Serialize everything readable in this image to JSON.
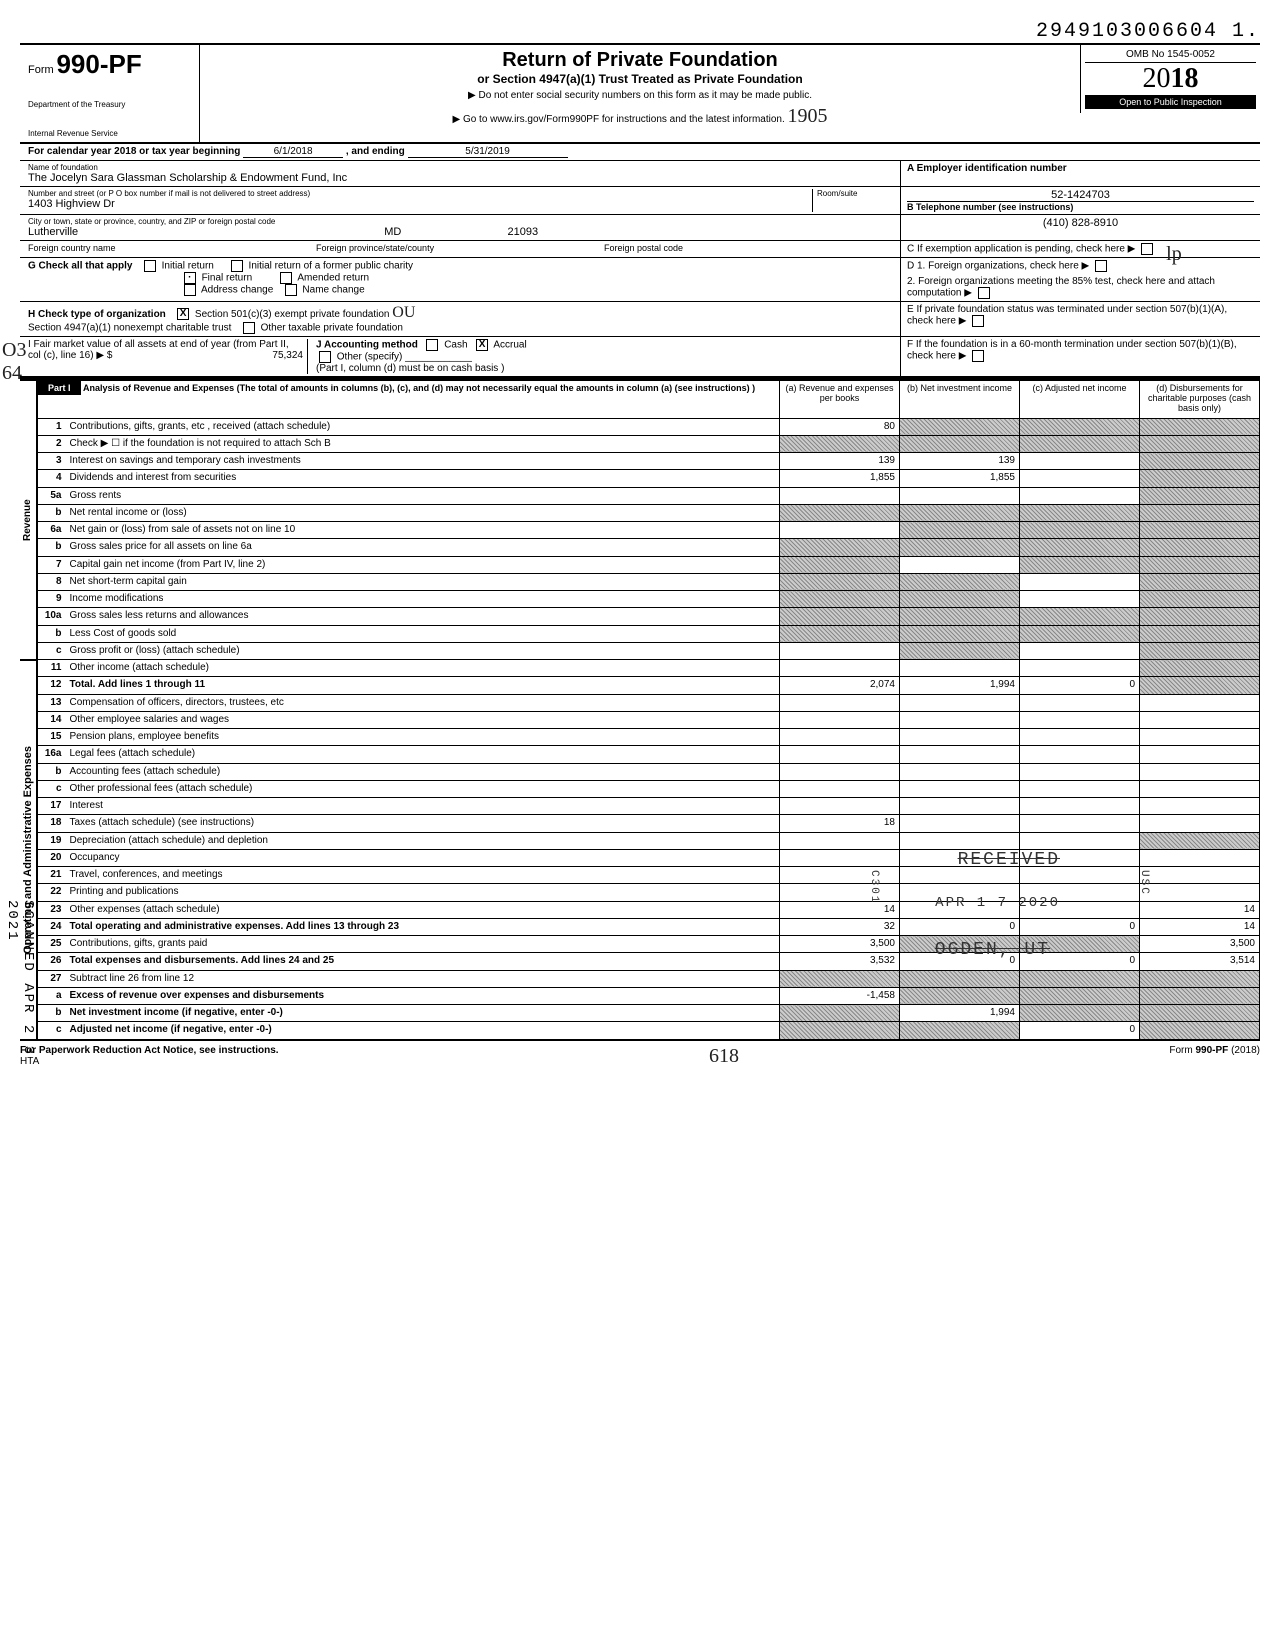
{
  "top_right_code": "2949103006604  1.",
  "form": {
    "number_prefix": "Form",
    "number": "990-PF",
    "dept1": "Department of the Treasury",
    "dept2": "Internal Revenue Service",
    "title": "Return of Private Foundation",
    "subtitle": "or Section 4947(a)(1) Trust Treated as Private Foundation",
    "note1": "▶  Do not enter social security numbers on this form as it may be made public.",
    "note2": "▶    Go to www.irs.gov/Form990PF for instructions and the latest information.",
    "hand_note": "1905",
    "omb": "OMB No 1545-0052",
    "year_prefix": "20",
    "year_suffix": "18",
    "inspection": "Open to Public Inspection"
  },
  "calendar": {
    "label": "For calendar year 2018 or tax year beginning",
    "begin": "6/1/2018",
    "mid": ", and ending",
    "end": "5/31/2019"
  },
  "foundation": {
    "name_label": "Name of foundation",
    "name": "The Jocelyn Sara Glassman Scholarship & Endowment Fund, Inc",
    "street_label": "Number and street (or P O  box number if mail is not delivered to street address)",
    "room_label": "Room/suite",
    "street": "1403 Highview Dr",
    "city_label": "City or town, state or province, country, and ZIP or foreign postal code",
    "city": "Lutherville",
    "state": "MD",
    "zip": "21093",
    "foreign_country_label": "Foreign country name",
    "foreign_province_label": "Foreign province/state/county",
    "foreign_postal_label": "Foreign postal code",
    "ein_label": "A  Employer identification number",
    "ein": "52-1424703",
    "phone_label": "B  Telephone number (see instructions)",
    "phone": "(410) 828-8910",
    "c_label": "C   If exemption application is pending, check here",
    "d1_label": "D  1. Foreign organizations, check here",
    "d2_label": "2. Foreign organizations meeting the 85% test, check here and attach computation",
    "e_label": "E   If private foundation status was terminated under section 507(b)(1)(A), check here",
    "f_label": "F   If the foundation is in a 60-month termination under section 507(b)(1)(B), check here"
  },
  "g": {
    "label": "G   Check all that apply",
    "initial": "Initial return",
    "initial_former": "Initial return of a former public charity",
    "final": "Final return",
    "amended": "Amended return",
    "address": "Address change",
    "name_change": "Name change"
  },
  "h": {
    "label": "H   Check type of organization",
    "opt1": "Section 501(c)(3) exempt private foundation",
    "opt2": "Section 4947(a)(1) nonexempt charitable trust",
    "opt3": "Other taxable private foundation"
  },
  "i": {
    "label": "I     Fair market value of all assets at end of year (from Part II, col  (c), line 16)  ▶  $",
    "value": "75,324"
  },
  "j": {
    "label": "J    Accounting method",
    "cash": "Cash",
    "accrual": "Accrual",
    "other": "Other (specify)",
    "note": "(Part I, column (d) must be on cash basis )"
  },
  "part1": {
    "tab": "Part I",
    "title": "Analysis of Revenue and Expenses (The total of amounts in columns (b), (c), and (d) may not necessarily equal the amounts in column (a) (see instructions) )",
    "col_a": "(a) Revenue and expenses per books",
    "col_b": "(b) Net investment income",
    "col_c": "(c) Adjusted net income",
    "col_d": "(d) Disbursements for charitable purposes (cash basis only)"
  },
  "revenue_label": "Revenue",
  "expenses_label": "Operating and Administrative Expenses",
  "lines": {
    "1": {
      "no": "1",
      "desc": "Contributions, gifts, grants, etc , received (attach schedule)",
      "a": "80",
      "b": "",
      "c": "",
      "d": "",
      "shaded": [
        "b",
        "c",
        "d"
      ]
    },
    "2": {
      "no": "2",
      "desc": "Check ▶ ☐ if the foundation is not required to attach Sch B",
      "a": "",
      "b": "",
      "c": "",
      "d": "",
      "shaded": [
        "a",
        "b",
        "c",
        "d"
      ]
    },
    "3": {
      "no": "3",
      "desc": "Interest on savings and temporary cash investments",
      "a": "139",
      "b": "139",
      "c": "",
      "d": "",
      "shaded": [
        "d"
      ]
    },
    "4": {
      "no": "4",
      "desc": "Dividends and interest from securities",
      "a": "1,855",
      "b": "1,855",
      "c": "",
      "d": "",
      "shaded": [
        "d"
      ]
    },
    "5a": {
      "no": "5a",
      "desc": "Gross rents",
      "a": "",
      "b": "",
      "c": "",
      "d": "",
      "shaded": [
        "d"
      ]
    },
    "5b": {
      "no": "b",
      "desc": "Net rental income or (loss)",
      "a": "",
      "b": "",
      "c": "",
      "d": "",
      "shaded": [
        "a",
        "b",
        "c",
        "d"
      ]
    },
    "6a": {
      "no": "6a",
      "desc": "Net gain or (loss) from sale of assets not on line 10",
      "a": "",
      "b": "",
      "c": "",
      "d": "",
      "shaded": [
        "b",
        "c",
        "d"
      ]
    },
    "6b": {
      "no": "b",
      "desc": "Gross sales price for all assets on line 6a",
      "a": "",
      "b": "",
      "c": "",
      "d": "",
      "shaded": [
        "a",
        "b",
        "c",
        "d"
      ]
    },
    "7": {
      "no": "7",
      "desc": "Capital gain net income (from Part IV, line 2)",
      "a": "",
      "b": "",
      "c": "",
      "d": "",
      "shaded": [
        "a",
        "c",
        "d"
      ]
    },
    "8": {
      "no": "8",
      "desc": "Net short-term capital gain",
      "a": "",
      "b": "",
      "c": "",
      "d": "",
      "shaded": [
        "a",
        "b",
        "d"
      ]
    },
    "9": {
      "no": "9",
      "desc": "Income modifications",
      "a": "",
      "b": "",
      "c": "",
      "d": "",
      "shaded": [
        "a",
        "b",
        "d"
      ]
    },
    "10a": {
      "no": "10a",
      "desc": "Gross sales less returns and allowances",
      "a": "",
      "b": "",
      "c": "",
      "d": "",
      "shaded": [
        "a",
        "b",
        "c",
        "d"
      ]
    },
    "10b": {
      "no": "b",
      "desc": "Less  Cost of goods sold",
      "a": "",
      "b": "",
      "c": "",
      "d": "",
      "shaded": [
        "a",
        "b",
        "c",
        "d"
      ]
    },
    "10c": {
      "no": "c",
      "desc": "Gross profit or (loss) (attach schedule)",
      "a": "",
      "b": "",
      "c": "",
      "d": "",
      "shaded": [
        "b",
        "d"
      ]
    },
    "11": {
      "no": "11",
      "desc": "Other income (attach schedule)",
      "a": "",
      "b": "",
      "c": "",
      "d": "",
      "shaded": [
        "d"
      ]
    },
    "12": {
      "no": "12",
      "desc": "Total. Add lines 1 through 11",
      "a": "2,074",
      "b": "1,994",
      "c": "0",
      "d": "",
      "shaded": [
        "d"
      ],
      "bold": true
    },
    "13": {
      "no": "13",
      "desc": "Compensation of officers, directors, trustees, etc",
      "a": "",
      "b": "",
      "c": "",
      "d": ""
    },
    "14": {
      "no": "14",
      "desc": "Other employee salaries and wages",
      "a": "",
      "b": "",
      "c": "",
      "d": ""
    },
    "15": {
      "no": "15",
      "desc": "Pension plans, employee benefits",
      "a": "",
      "b": "",
      "c": "",
      "d": ""
    },
    "16a": {
      "no": "16a",
      "desc": "Legal fees (attach schedule)",
      "a": "",
      "b": "",
      "c": "",
      "d": ""
    },
    "16b": {
      "no": "b",
      "desc": "Accounting fees (attach schedule)",
      "a": "",
      "b": "",
      "c": "",
      "d": ""
    },
    "16c": {
      "no": "c",
      "desc": "Other professional fees (attach schedule)",
      "a": "",
      "b": "",
      "c": "",
      "d": ""
    },
    "17": {
      "no": "17",
      "desc": "Interest",
      "a": "",
      "b": "",
      "c": "",
      "d": ""
    },
    "18": {
      "no": "18",
      "desc": "Taxes (attach schedule) (see instructions)",
      "a": "18",
      "b": "",
      "c": "",
      "d": ""
    },
    "19": {
      "no": "19",
      "desc": "Depreciation (attach schedule) and depletion",
      "a": "",
      "b": "",
      "c": "",
      "d": "",
      "shaded": [
        "d"
      ]
    },
    "20": {
      "no": "20",
      "desc": "Occupancy",
      "a": "",
      "b": "",
      "c": "",
      "d": ""
    },
    "21": {
      "no": "21",
      "desc": "Travel, conferences, and meetings",
      "a": "",
      "b": "",
      "c": "",
      "d": ""
    },
    "22": {
      "no": "22",
      "desc": "Printing and publications",
      "a": "",
      "b": "",
      "c": "",
      "d": ""
    },
    "23": {
      "no": "23",
      "desc": "Other expenses (attach schedule)",
      "a": "14",
      "b": "",
      "c": "",
      "d": "14"
    },
    "24": {
      "no": "24",
      "desc": "Total operating and administrative expenses. Add lines 13 through 23",
      "a": "32",
      "b": "0",
      "c": "0",
      "d": "14",
      "bold": true
    },
    "25": {
      "no": "25",
      "desc": "Contributions, gifts, grants paid",
      "a": "3,500",
      "b": "",
      "c": "",
      "d": "3,500",
      "shaded": [
        "b",
        "c"
      ]
    },
    "26": {
      "no": "26",
      "desc": "Total expenses and disbursements. Add lines 24 and 25",
      "a": "3,532",
      "b": "0",
      "c": "0",
      "d": "3,514",
      "bold": true
    },
    "27": {
      "no": "27",
      "desc": "Subtract line 26 from line 12",
      "a": "",
      "b": "",
      "c": "",
      "d": "",
      "shaded": [
        "a",
        "b",
        "c",
        "d"
      ]
    },
    "27a": {
      "no": "a",
      "desc": "Excess of revenue over expenses and disbursements",
      "a": "-1,458",
      "b": "",
      "c": "",
      "d": "",
      "shaded": [
        "b",
        "c",
        "d"
      ],
      "bold": true
    },
    "27b": {
      "no": "b",
      "desc": "Net investment income (if negative, enter -0-)",
      "a": "",
      "b": "1,994",
      "c": "",
      "d": "",
      "shaded": [
        "a",
        "c",
        "d"
      ],
      "bold": true
    },
    "27c": {
      "no": "c",
      "desc": "Adjusted net income (if negative, enter -0-)",
      "a": "",
      "b": "",
      "c": "0",
      "d": "",
      "shaded": [
        "a",
        "b",
        "d"
      ],
      "bold": true
    }
  },
  "stamps": {
    "received": "RECEIVED",
    "date": "APR 1 7 2020",
    "ogden": "OGDEN, UT",
    "side": "SCANNED APR 2 3 2021",
    "c301": "C301",
    "usc": "USC"
  },
  "hand": {
    "left_o3": "O3",
    "left_64": "64",
    "right_lp": "lp",
    "ou": "OU",
    "bottom_618": "618"
  },
  "footer": {
    "left": "For Paperwork Reduction Act Notice, see instructions.",
    "hta": "HTA",
    "right": "Form 990-PF (2018)"
  }
}
